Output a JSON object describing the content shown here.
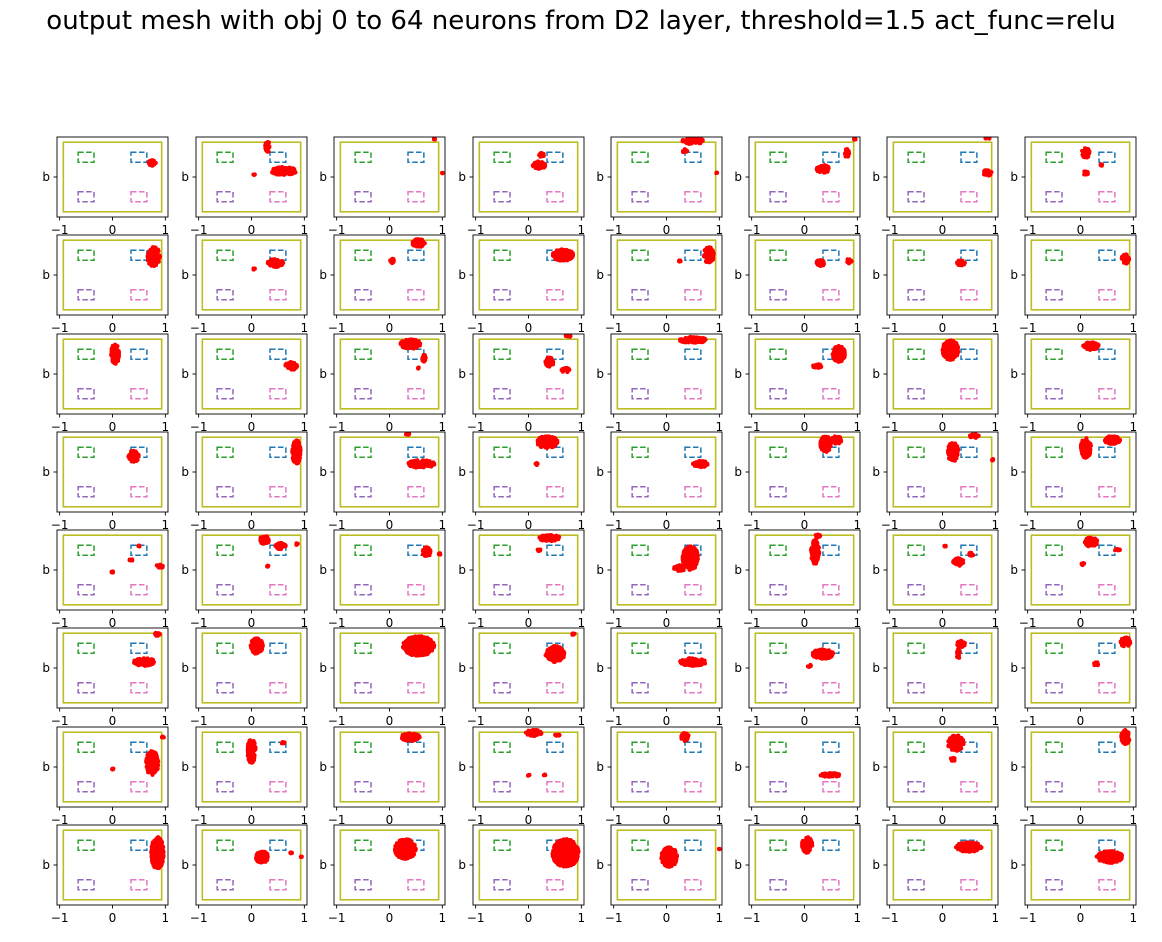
{
  "figure": {
    "title": "output mesh with obj 0 to 64 neurons from D2 layer, threshold=1.5 act_func=relu"
  },
  "chart_data": {
    "type": "scatter",
    "grid": false,
    "rows": 8,
    "cols": 8,
    "xlim": [
      -1.05,
      1.05
    ],
    "ylim": [
      -1.0,
      1.0
    ],
    "xticks": [
      -1,
      0,
      1
    ],
    "xtick_labels": [
      "−1",
      "0",
      "1"
    ],
    "ytick_label": "b",
    "x_ticklabels_only_on_bottom_row": true,
    "fixed_regions": [
      {
        "name": "boundary",
        "color": "#bcbd22",
        "style": "solid",
        "x": [
          -0.93,
          0.93
        ],
        "y": [
          -0.87,
          0.87
        ]
      },
      {
        "name": "goal-blue",
        "color": "#1f77b4",
        "style": "dashed",
        "x": [
          0.35,
          0.65
        ],
        "y": [
          0.37,
          0.62
        ]
      },
      {
        "name": "goal-green",
        "color": "#2ca02c",
        "style": "dashed",
        "x": [
          -0.65,
          -0.35
        ],
        "y": [
          0.37,
          0.62
        ]
      },
      {
        "name": "goal-purple",
        "color": "#9467bd",
        "style": "dashed",
        "x": [
          -0.65,
          -0.35
        ],
        "y": [
          -0.62,
          -0.37
        ]
      },
      {
        "name": "goal-pink",
        "color": "#e377c2",
        "style": "dashed",
        "x": [
          0.35,
          0.65
        ],
        "y": [
          -0.62,
          -0.37
        ]
      }
    ],
    "point_color": "#ff0000",
    "panels": [
      {
        "neuron": 0,
        "clusters": [
          [
            0.75,
            0.35,
            0.08,
            0.08
          ]
        ]
      },
      {
        "neuron": 1,
        "clusters": [
          [
            0.3,
            0.75,
            0.05,
            0.15
          ],
          [
            0.6,
            0.15,
            0.25,
            0.1
          ],
          [
            0.05,
            0.05,
            0.02,
            0.02
          ]
        ]
      },
      {
        "neuron": 2,
        "clusters": [
          [
            0.85,
            0.95,
            0.02,
            0.02
          ],
          [
            1.0,
            0.1,
            0.01,
            0.01
          ]
        ]
      },
      {
        "neuron": 3,
        "clusters": [
          [
            0.2,
            0.3,
            0.12,
            0.1
          ],
          [
            0.25,
            0.55,
            0.05,
            0.05
          ]
        ]
      },
      {
        "neuron": 4,
        "clusters": [
          [
            0.5,
            0.9,
            0.2,
            0.08
          ],
          [
            0.35,
            0.65,
            0.05,
            0.05
          ],
          [
            0.95,
            0.1,
            0.01,
            0.01
          ]
        ]
      },
      {
        "neuron": 5,
        "clusters": [
          [
            0.35,
            0.2,
            0.12,
            0.1
          ],
          [
            0.8,
            0.6,
            0.05,
            0.1
          ],
          [
            0.95,
            0.95,
            0.02,
            0.02
          ]
        ]
      },
      {
        "neuron": 6,
        "clusters": [
          [
            0.85,
            0.1,
            0.08,
            0.08
          ],
          [
            0.85,
            0.97,
            0.05,
            0.02
          ]
        ]
      },
      {
        "neuron": 7,
        "clusters": [
          [
            0.1,
            0.6,
            0.08,
            0.12
          ],
          [
            0.1,
            0.1,
            0.05,
            0.05
          ],
          [
            0.4,
            0.3,
            0.02,
            0.02
          ]
        ]
      },
      {
        "neuron": 8,
        "clusters": [
          [
            0.78,
            0.45,
            0.12,
            0.25
          ]
        ]
      },
      {
        "neuron": 9,
        "clusters": [
          [
            0.45,
            0.3,
            0.15,
            0.1
          ],
          [
            0.05,
            0.15,
            0.02,
            0.02
          ]
        ]
      },
      {
        "neuron": 10,
        "clusters": [
          [
            0.55,
            0.8,
            0.12,
            0.1
          ],
          [
            0.05,
            0.35,
            0.04,
            0.07
          ]
        ]
      },
      {
        "neuron": 11,
        "clusters": [
          [
            0.65,
            0.5,
            0.2,
            0.15
          ]
        ]
      },
      {
        "neuron": 12,
        "clusters": [
          [
            0.8,
            0.5,
            0.1,
            0.2
          ],
          [
            0.25,
            0.35,
            0.02,
            0.02
          ]
        ]
      },
      {
        "neuron": 13,
        "clusters": [
          [
            0.3,
            0.3,
            0.08,
            0.08
          ],
          [
            0.85,
            0.35,
            0.05,
            0.07
          ]
        ]
      },
      {
        "neuron": 14,
        "clusters": [
          [
            0.35,
            0.3,
            0.08,
            0.07
          ]
        ]
      },
      {
        "neuron": 15,
        "clusters": [
          [
            0.85,
            0.4,
            0.08,
            0.12
          ]
        ]
      },
      {
        "neuron": 16,
        "clusters": [
          [
            0.05,
            0.5,
            0.08,
            0.25
          ]
        ]
      },
      {
        "neuron": 17,
        "clusters": [
          [
            0.75,
            0.2,
            0.12,
            0.1
          ]
        ]
      },
      {
        "neuron": 18,
        "clusters": [
          [
            0.4,
            0.75,
            0.2,
            0.12
          ],
          [
            0.65,
            0.4,
            0.04,
            0.1
          ],
          [
            0.55,
            0.15,
            0.02,
            0.02
          ]
        ]
      },
      {
        "neuron": 19,
        "clusters": [
          [
            0.4,
            0.3,
            0.08,
            0.12
          ],
          [
            0.7,
            0.1,
            0.08,
            0.06
          ],
          [
            0.75,
            0.95,
            0.05,
            0.03
          ]
        ]
      },
      {
        "neuron": 20,
        "clusters": [
          [
            0.5,
            0.85,
            0.25,
            0.08
          ]
        ]
      },
      {
        "neuron": 21,
        "clusters": [
          [
            0.65,
            0.5,
            0.12,
            0.2
          ],
          [
            0.25,
            0.2,
            0.1,
            0.05
          ]
        ]
      },
      {
        "neuron": 22,
        "clusters": [
          [
            0.15,
            0.6,
            0.15,
            0.25
          ]
        ]
      },
      {
        "neuron": 23,
        "clusters": [
          [
            0.2,
            0.7,
            0.15,
            0.1
          ]
        ]
      },
      {
        "neuron": 24,
        "clusters": [
          [
            0.4,
            0.4,
            0.1,
            0.15
          ]
        ]
      },
      {
        "neuron": 25,
        "clusters": [
          [
            0.85,
            0.5,
            0.08,
            0.3
          ]
        ]
      },
      {
        "neuron": 26,
        "clusters": [
          [
            0.6,
            0.2,
            0.25,
            0.1
          ],
          [
            0.35,
            0.95,
            0.05,
            0.02
          ]
        ]
      },
      {
        "neuron": 27,
        "clusters": [
          [
            0.35,
            0.75,
            0.2,
            0.15
          ],
          [
            0.15,
            0.2,
            0.03,
            0.03
          ]
        ]
      },
      {
        "neuron": 28,
        "clusters": [
          [
            0.65,
            0.2,
            0.15,
            0.08
          ]
        ]
      },
      {
        "neuron": 29,
        "clusters": [
          [
            0.4,
            0.7,
            0.1,
            0.2
          ],
          [
            0.6,
            0.8,
            0.1,
            0.1
          ]
        ]
      },
      {
        "neuron": 30,
        "clusters": [
          [
            0.2,
            0.5,
            0.1,
            0.25
          ],
          [
            0.6,
            0.9,
            0.1,
            0.05
          ],
          [
            0.95,
            0.3,
            0.02,
            0.03
          ]
        ]
      },
      {
        "neuron": 31,
        "clusters": [
          [
            0.1,
            0.6,
            0.1,
            0.25
          ],
          [
            0.6,
            0.8,
            0.15,
            0.1
          ]
        ]
      },
      {
        "neuron": 32,
        "clusters": [
          [
            0.9,
            0.1,
            0.07,
            0.05
          ],
          [
            0.5,
            0.6,
            0.02,
            0.02
          ],
          [
            0.35,
            0.25,
            0.03,
            0.03
          ],
          [
            0.0,
            -0.05,
            0.02,
            0.02
          ]
        ]
      },
      {
        "neuron": 33,
        "clusters": [
          [
            0.25,
            0.75,
            0.1,
            0.1
          ],
          [
            0.55,
            0.6,
            0.1,
            0.08
          ],
          [
            0.85,
            0.65,
            0.03,
            0.03
          ],
          [
            0.3,
            0.1,
            0.02,
            0.02
          ]
        ]
      },
      {
        "neuron": 34,
        "clusters": [
          [
            0.7,
            0.45,
            0.08,
            0.12
          ],
          [
            0.95,
            0.4,
            0.02,
            0.02
          ]
        ]
      },
      {
        "neuron": 35,
        "clusters": [
          [
            0.4,
            0.8,
            0.2,
            0.08
          ],
          [
            0.2,
            0.5,
            0.03,
            0.03
          ]
        ]
      },
      {
        "neuron": 36,
        "clusters": [
          [
            0.45,
            0.3,
            0.15,
            0.3
          ],
          [
            0.25,
            0.05,
            0.12,
            0.08
          ]
        ]
      },
      {
        "neuron": 37,
        "clusters": [
          [
            0.2,
            0.45,
            0.08,
            0.3
          ],
          [
            0.25,
            0.85,
            0.05,
            0.05
          ]
        ]
      },
      {
        "neuron": 38,
        "clusters": [
          [
            0.3,
            0.2,
            0.1,
            0.1
          ],
          [
            0.55,
            0.4,
            0.05,
            0.05
          ],
          [
            0.05,
            0.6,
            0.02,
            0.02
          ]
        ]
      },
      {
        "neuron": 39,
        "clusters": [
          [
            0.2,
            0.7,
            0.12,
            0.12
          ],
          [
            0.7,
            0.5,
            0.05,
            0.03
          ],
          [
            0.05,
            0.15,
            0.03,
            0.03
          ]
        ]
      },
      {
        "neuron": 40,
        "clusters": [
          [
            0.6,
            0.15,
            0.2,
            0.1
          ],
          [
            0.85,
            0.85,
            0.05,
            0.05
          ]
        ]
      },
      {
        "neuron": 41,
        "clusters": [
          [
            0.1,
            0.55,
            0.12,
            0.2
          ]
        ]
      },
      {
        "neuron": 42,
        "clusters": [
          [
            0.55,
            0.55,
            0.3,
            0.25
          ]
        ]
      },
      {
        "neuron": 43,
        "clusters": [
          [
            0.5,
            0.35,
            0.18,
            0.2
          ],
          [
            0.85,
            0.85,
            0.03,
            0.03
          ]
        ]
      },
      {
        "neuron": 44,
        "clusters": [
          [
            0.5,
            0.15,
            0.25,
            0.1
          ]
        ]
      },
      {
        "neuron": 45,
        "clusters": [
          [
            0.35,
            0.35,
            0.2,
            0.12
          ],
          [
            0.1,
            0.05,
            0.04,
            0.03
          ]
        ]
      },
      {
        "neuron": 46,
        "clusters": [
          [
            0.35,
            0.6,
            0.08,
            0.08
          ],
          [
            0.3,
            0.35,
            0.03,
            0.12
          ]
        ]
      },
      {
        "neuron": 47,
        "clusters": [
          [
            0.85,
            0.65,
            0.1,
            0.12
          ],
          [
            0.3,
            0.1,
            0.05,
            0.05
          ]
        ]
      },
      {
        "neuron": 48,
        "clusters": [
          [
            0.75,
            0.1,
            0.12,
            0.3
          ],
          [
            0.95,
            0.75,
            0.03,
            0.03
          ],
          [
            0.0,
            -0.05,
            0.02,
            0.02
          ]
        ]
      },
      {
        "neuron": 49,
        "clusters": [
          [
            0.0,
            0.4,
            0.08,
            0.3
          ],
          [
            0.6,
            0.6,
            0.03,
            0.03
          ]
        ]
      },
      {
        "neuron": 50,
        "clusters": [
          [
            0.4,
            0.75,
            0.18,
            0.1
          ]
        ]
      },
      {
        "neuron": 51,
        "clusters": [
          [
            0.1,
            0.85,
            0.15,
            0.08
          ],
          [
            0.55,
            0.8,
            0.05,
            0.03
          ],
          [
            0.0,
            -0.2,
            0.02,
            0.02
          ],
          [
            0.3,
            -0.2,
            0.02,
            0.02
          ]
        ]
      },
      {
        "neuron": 52,
        "clusters": [
          [
            0.35,
            0.75,
            0.08,
            0.1
          ]
        ]
      },
      {
        "neuron": 53,
        "clusters": [
          [
            0.5,
            -0.2,
            0.2,
            0.05
          ]
        ]
      },
      {
        "neuron": 54,
        "clusters": [
          [
            0.25,
            0.6,
            0.15,
            0.2
          ],
          [
            0.2,
            0.2,
            0.05,
            0.05
          ]
        ]
      },
      {
        "neuron": 55,
        "clusters": [
          [
            0.85,
            0.75,
            0.08,
            0.18
          ]
        ]
      },
      {
        "neuron": 56,
        "clusters": [
          [
            0.85,
            0.3,
            0.12,
            0.4
          ]
        ]
      },
      {
        "neuron": 57,
        "clusters": [
          [
            0.2,
            0.2,
            0.12,
            0.15
          ],
          [
            0.95,
            0.2,
            0.02,
            0.02
          ],
          [
            0.75,
            0.3,
            0.02,
            0.02
          ]
        ]
      },
      {
        "neuron": 58,
        "clusters": [
          [
            0.3,
            0.4,
            0.2,
            0.25
          ]
        ]
      },
      {
        "neuron": 59,
        "clusters": [
          [
            0.7,
            0.3,
            0.25,
            0.35
          ]
        ]
      },
      {
        "neuron": 60,
        "clusters": [
          [
            0.05,
            0.2,
            0.15,
            0.25
          ],
          [
            1.0,
            0.4,
            0.01,
            0.01
          ]
        ]
      },
      {
        "neuron": 61,
        "clusters": [
          [
            0.05,
            0.5,
            0.1,
            0.2
          ]
        ]
      },
      {
        "neuron": 62,
        "clusters": [
          [
            0.5,
            0.45,
            0.25,
            0.12
          ]
        ]
      },
      {
        "neuron": 63,
        "clusters": [
          [
            0.55,
            0.2,
            0.25,
            0.15
          ]
        ]
      }
    ]
  }
}
